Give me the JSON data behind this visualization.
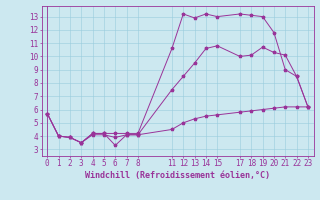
{
  "xlabel": "Windchill (Refroidissement éolien,°C)",
  "bg_color": "#cce8f0",
  "line_color": "#993399",
  "marker": "*",
  "xlim": [
    -0.5,
    23.5
  ],
  "ylim": [
    2.5,
    13.8
  ],
  "yticks": [
    3,
    4,
    5,
    6,
    7,
    8,
    9,
    10,
    11,
    12,
    13
  ],
  "xticks": [
    0,
    1,
    2,
    3,
    4,
    5,
    6,
    7,
    8,
    11,
    12,
    13,
    14,
    15,
    17,
    18,
    19,
    20,
    21,
    22,
    23
  ],
  "series": [
    [
      [
        0,
        5.7
      ],
      [
        1,
        4.0
      ],
      [
        2,
        3.9
      ],
      [
        3,
        3.5
      ],
      [
        4,
        4.1
      ],
      [
        5,
        4.1
      ],
      [
        6,
        3.9
      ],
      [
        7,
        4.1
      ],
      [
        8,
        4.1
      ],
      [
        11,
        4.5
      ],
      [
        12,
        5.0
      ],
      [
        13,
        5.3
      ],
      [
        14,
        5.5
      ],
      [
        15,
        5.6
      ],
      [
        17,
        5.8
      ],
      [
        18,
        5.9
      ],
      [
        19,
        6.0
      ],
      [
        20,
        6.1
      ],
      [
        21,
        6.2
      ],
      [
        22,
        6.2
      ],
      [
        23,
        6.2
      ]
    ],
    [
      [
        0,
        5.7
      ],
      [
        1,
        4.0
      ],
      [
        2,
        3.9
      ],
      [
        3,
        3.5
      ],
      [
        4,
        4.2
      ],
      [
        5,
        4.2
      ],
      [
        6,
        3.3
      ],
      [
        7,
        4.1
      ],
      [
        8,
        4.1
      ],
      [
        11,
        7.5
      ],
      [
        12,
        8.5
      ],
      [
        13,
        9.5
      ],
      [
        14,
        10.6
      ],
      [
        15,
        10.8
      ],
      [
        17,
        10.0
      ],
      [
        18,
        10.1
      ],
      [
        19,
        10.7
      ],
      [
        20,
        10.3
      ],
      [
        21,
        10.1
      ],
      [
        22,
        8.5
      ],
      [
        23,
        6.2
      ]
    ],
    [
      [
        0,
        5.7
      ],
      [
        1,
        4.0
      ],
      [
        2,
        3.9
      ],
      [
        3,
        3.5
      ],
      [
        4,
        4.2
      ],
      [
        5,
        4.2
      ],
      [
        6,
        4.2
      ],
      [
        7,
        4.2
      ],
      [
        8,
        4.2
      ],
      [
        11,
        10.6
      ],
      [
        12,
        13.2
      ],
      [
        13,
        12.9
      ],
      [
        14,
        13.2
      ],
      [
        15,
        13.0
      ],
      [
        17,
        13.2
      ],
      [
        18,
        13.1
      ],
      [
        19,
        13.0
      ],
      [
        20,
        11.8
      ],
      [
        21,
        9.0
      ],
      [
        22,
        8.5
      ],
      [
        23,
        6.2
      ]
    ]
  ],
  "grid_color": "#99ccdd",
  "font_color": "#993399",
  "font_size": 5.5,
  "xlabel_fontsize": 6.0,
  "linewidth": 0.7,
  "markersize": 2.5
}
